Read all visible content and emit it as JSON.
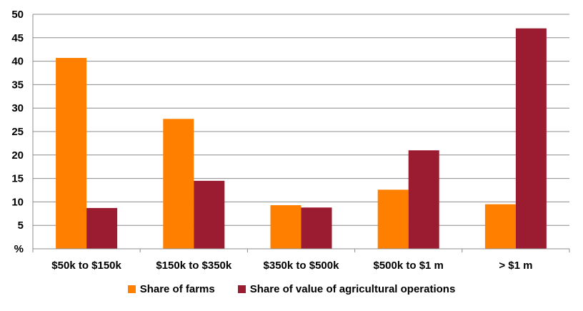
{
  "chart_data": {
    "type": "bar",
    "categories": [
      "$50k to $150k",
      "$150k to $350k",
      "$350k to $500k",
      "$500k to $1 m",
      "> $1 m"
    ],
    "series": [
      {
        "name": "Share of farms",
        "color": "#FF7F00",
        "values": [
          40.7,
          27.7,
          9.3,
          12.6,
          9.5
        ]
      },
      {
        "name": "Share of value of agricultural operations",
        "color": "#9B1B30",
        "values": [
          8.7,
          14.5,
          8.8,
          21.0,
          47.0
        ]
      }
    ],
    "ylim": [
      0,
      50
    ],
    "yticks": [
      "%",
      "5",
      "10",
      "15",
      "20",
      "25",
      "30",
      "35",
      "40",
      "45",
      "50"
    ],
    "grid": true,
    "legend_position": "bottom"
  }
}
